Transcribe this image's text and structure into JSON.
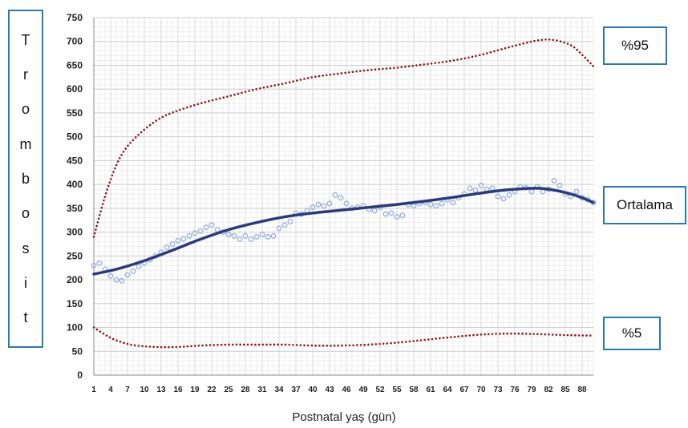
{
  "chart_data": {
    "type": "line",
    "xlabel": "Postnatal yaş (gün)",
    "ylabel": "Trombosit",
    "ylim": [
      0,
      750
    ],
    "xlim": [
      1,
      90
    ],
    "y_ticks": [
      0,
      50,
      100,
      150,
      200,
      250,
      300,
      350,
      400,
      450,
      500,
      550,
      600,
      650,
      700,
      750
    ],
    "x_ticks": [
      1,
      4,
      7,
      10,
      13,
      16,
      19,
      22,
      25,
      28,
      31,
      34,
      37,
      40,
      43,
      46,
      49,
      52,
      55,
      58,
      61,
      64,
      67,
      70,
      73,
      76,
      79,
      82,
      85,
      88
    ],
    "grid": true,
    "labels": {
      "p95": "%95",
      "mean": "Ortalama",
      "p5": "%5"
    },
    "colors": {
      "percentile": "#8b1a1a",
      "mean": "#2b3a7a",
      "observed": "#9bb4dc",
      "label_border": "#2a7ab0",
      "grid": "#cccccc"
    },
    "series": [
      {
        "name": "%95",
        "style": "dotted",
        "points": [
          [
            1,
            290
          ],
          [
            3,
            375
          ],
          [
            5,
            440
          ],
          [
            7,
            480
          ],
          [
            10,
            515
          ],
          [
            13,
            540
          ],
          [
            16,
            555
          ],
          [
            20,
            570
          ],
          [
            25,
            585
          ],
          [
            30,
            600
          ],
          [
            35,
            612
          ],
          [
            40,
            625
          ],
          [
            45,
            633
          ],
          [
            50,
            640
          ],
          [
            55,
            645
          ],
          [
            60,
            652
          ],
          [
            65,
            660
          ],
          [
            70,
            672
          ],
          [
            75,
            688
          ],
          [
            80,
            702
          ],
          [
            83,
            703
          ],
          [
            86,
            692
          ],
          [
            88,
            672
          ],
          [
            90,
            648
          ]
        ]
      },
      {
        "name": "Ortalama",
        "style": "solid",
        "points": [
          [
            1,
            212
          ],
          [
            5,
            222
          ],
          [
            10,
            240
          ],
          [
            15,
            262
          ],
          [
            20,
            285
          ],
          [
            25,
            305
          ],
          [
            30,
            320
          ],
          [
            35,
            332
          ],
          [
            40,
            340
          ],
          [
            45,
            346
          ],
          [
            50,
            352
          ],
          [
            55,
            358
          ],
          [
            60,
            365
          ],
          [
            65,
            373
          ],
          [
            70,
            382
          ],
          [
            75,
            389
          ],
          [
            80,
            392
          ],
          [
            83,
            388
          ],
          [
            86,
            380
          ],
          [
            88,
            372
          ],
          [
            90,
            362
          ]
        ]
      },
      {
        "name": "%5",
        "style": "dotted",
        "points": [
          [
            1,
            100
          ],
          [
            3,
            85
          ],
          [
            5,
            73
          ],
          [
            8,
            63
          ],
          [
            12,
            59
          ],
          [
            16,
            59
          ],
          [
            20,
            62
          ],
          [
            25,
            64
          ],
          [
            30,
            64
          ],
          [
            35,
            64
          ],
          [
            40,
            62
          ],
          [
            45,
            62
          ],
          [
            50,
            64
          ],
          [
            55,
            68
          ],
          [
            60,
            74
          ],
          [
            65,
            80
          ],
          [
            70,
            85
          ],
          [
            75,
            87
          ],
          [
            80,
            86
          ],
          [
            85,
            84
          ],
          [
            90,
            83
          ]
        ]
      },
      {
        "name": "",
        "style": "markers",
        "points": [
          [
            1,
            230
          ],
          [
            2,
            235
          ],
          [
            3,
            222
          ],
          [
            4,
            208
          ],
          [
            5,
            200
          ],
          [
            6,
            198
          ],
          [
            7,
            210
          ],
          [
            8,
            218
          ],
          [
            9,
            228
          ],
          [
            10,
            235
          ],
          [
            11,
            242
          ],
          [
            12,
            250
          ],
          [
            13,
            258
          ],
          [
            14,
            268
          ],
          [
            15,
            275
          ],
          [
            16,
            282
          ],
          [
            17,
            286
          ],
          [
            18,
            292
          ],
          [
            19,
            298
          ],
          [
            20,
            302
          ],
          [
            21,
            310
          ],
          [
            22,
            315
          ],
          [
            23,
            305
          ],
          [
            24,
            300
          ],
          [
            25,
            295
          ],
          [
            26,
            292
          ],
          [
            27,
            285
          ],
          [
            28,
            292
          ],
          [
            29,
            285
          ],
          [
            30,
            290
          ],
          [
            31,
            295
          ],
          [
            32,
            290
          ],
          [
            33,
            292
          ],
          [
            34,
            308
          ],
          [
            35,
            315
          ],
          [
            36,
            322
          ],
          [
            37,
            340
          ],
          [
            38,
            338
          ],
          [
            39,
            345
          ],
          [
            40,
            352
          ],
          [
            41,
            358
          ],
          [
            42,
            355
          ],
          [
            43,
            360
          ],
          [
            44,
            378
          ],
          [
            45,
            372
          ],
          [
            46,
            360
          ],
          [
            47,
            350
          ],
          [
            48,
            352
          ],
          [
            49,
            355
          ],
          [
            50,
            348
          ],
          [
            51,
            345
          ],
          [
            52,
            352
          ],
          [
            53,
            338
          ],
          [
            54,
            340
          ],
          [
            55,
            332
          ],
          [
            56,
            335
          ],
          [
            57,
            358
          ],
          [
            58,
            355
          ],
          [
            59,
            360
          ],
          [
            60,
            362
          ],
          [
            61,
            358
          ],
          [
            62,
            355
          ],
          [
            63,
            360
          ],
          [
            64,
            368
          ],
          [
            65,
            362
          ],
          [
            66,
            372
          ],
          [
            67,
            380
          ],
          [
            68,
            392
          ],
          [
            69,
            388
          ],
          [
            70,
            398
          ],
          [
            71,
            390
          ],
          [
            72,
            392
          ],
          [
            73,
            375
          ],
          [
            74,
            370
          ],
          [
            75,
            378
          ],
          [
            76,
            385
          ],
          [
            77,
            395
          ],
          [
            78,
            393
          ],
          [
            79,
            385
          ],
          [
            80,
            395
          ],
          [
            81,
            385
          ],
          [
            82,
            390
          ],
          [
            83,
            408
          ],
          [
            84,
            398
          ],
          [
            85,
            380
          ],
          [
            86,
            375
          ],
          [
            87,
            385
          ],
          [
            88,
            372
          ],
          [
            89,
            368
          ],
          [
            90,
            362
          ]
        ]
      }
    ]
  }
}
